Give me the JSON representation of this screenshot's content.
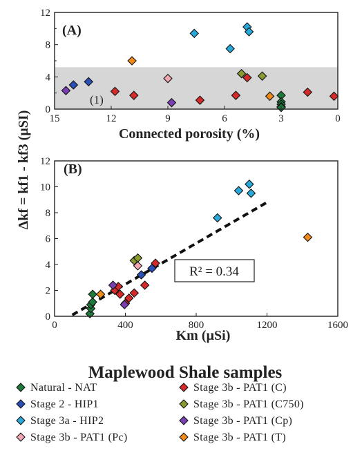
{
  "chart_data": [
    {
      "panel": "(A)",
      "type": "scatter",
      "xlabel": "Connected porosity (%)",
      "xlim": [
        15,
        0
      ],
      "ylim": [
        0,
        12
      ],
      "xticks": [
        "15",
        "12",
        "9",
        "6",
        "3",
        "0"
      ],
      "yticks": [
        "0",
        "4",
        "8",
        "12"
      ],
      "x_reversed": true,
      "grid": false,
      "shaded_band": {
        "ymin": 0,
        "ymax": 5.2,
        "label": "(1)"
      },
      "series": [
        {
          "name": "Natural - NAT",
          "color": "#1e7a3c",
          "points": [
            [
              3.0,
              1.7
            ],
            [
              3.0,
              0.9
            ],
            [
              3.0,
              0.6
            ],
            [
              3.0,
              0.3
            ],
            [
              3.0,
              0.2
            ]
          ]
        },
        {
          "name": "Stage 2 - HIP1",
          "color": "#2a4fb5",
          "points": [
            [
              14.0,
              3.0
            ],
            [
              13.2,
              3.4
            ]
          ]
        },
        {
          "name": "Stage 3a - HIP2",
          "color": "#29a9d9",
          "points": [
            [
              7.6,
              9.4
            ],
            [
              5.7,
              7.5
            ],
            [
              4.8,
              10.2
            ],
            [
              4.7,
              9.6
            ]
          ]
        },
        {
          "name": "Stage 3b - PAT1 (Pc)",
          "color": "#f2a7b3",
          "points": [
            [
              9.0,
              3.8
            ]
          ]
        },
        {
          "name": "Stage 3b - PAT1 (C)",
          "color": "#d42a2a",
          "points": [
            [
              11.8,
              2.2
            ],
            [
              10.8,
              1.7
            ],
            [
              7.3,
              1.1
            ],
            [
              5.4,
              1.7
            ],
            [
              4.8,
              3.9
            ],
            [
              1.6,
              2.1
            ],
            [
              0.2,
              1.6
            ]
          ]
        },
        {
          "name": "Stage 3b - PAT1 (C750)",
          "color": "#8a9a2e",
          "points": [
            [
              5.1,
              4.4
            ],
            [
              4.0,
              4.1
            ]
          ]
        },
        {
          "name": "Stage 3b - PAT1 (Cp)",
          "color": "#7a3fb0",
          "points": [
            [
              14.4,
              2.3
            ],
            [
              8.8,
              0.8
            ]
          ]
        },
        {
          "name": "Stage 3b - PAT1 (T)",
          "color": "#f08a1a",
          "points": [
            [
              10.9,
              6.0
            ],
            [
              3.6,
              1.6
            ]
          ]
        }
      ]
    },
    {
      "panel": "(B)",
      "type": "scatter",
      "xlabel": "Km (µSi)",
      "ylabel": "Δkf = kf1 - kf3 (µSI)",
      "xlim": [
        0,
        1600
      ],
      "ylim": [
        0,
        12
      ],
      "xticks": [
        "0",
        "400",
        "800",
        "1200",
        "1600"
      ],
      "yticks": [
        "0",
        "2",
        "4",
        "6",
        "8",
        "10",
        "12"
      ],
      "grid": false,
      "trendline": {
        "x": [
          100,
          1200
        ],
        "y": [
          0.1,
          8.8
        ],
        "style": "dashed",
        "label": "R² = 0.34"
      },
      "series": [
        {
          "name": "Natural - NAT",
          "color": "#1e7a3c",
          "points": [
            [
              200,
              0.2
            ],
            [
              205,
              0.6
            ],
            [
              205,
              0.9
            ],
            [
              215,
              1.1
            ],
            [
              215,
              1.7
            ]
          ]
        },
        {
          "name": "Stage 2 - HIP1",
          "color": "#2a4fb5",
          "points": [
            [
              490,
              3.2
            ],
            [
              550,
              3.7
            ]
          ]
        },
        {
          "name": "Stage 3a - HIP2",
          "color": "#29a9d9",
          "points": [
            [
              920,
              7.6
            ],
            [
              1040,
              9.7
            ],
            [
              1100,
              10.2
            ],
            [
              1110,
              9.5
            ]
          ]
        },
        {
          "name": "Stage 3b - PAT1 (Pc)",
          "color": "#f2a7b3",
          "points": [
            [
              470,
              3.9
            ]
          ]
        },
        {
          "name": "Stage 3b - PAT1 (C)",
          "color": "#d42a2a",
          "points": [
            [
              340,
              2.0
            ],
            [
              360,
              2.3
            ],
            [
              370,
              1.7
            ],
            [
              400,
              1.0
            ],
            [
              420,
              1.4
            ],
            [
              450,
              1.8
            ],
            [
              510,
              2.4
            ],
            [
              570,
              4.1
            ]
          ]
        },
        {
          "name": "Stage 3b - PAT1 (C750)",
          "color": "#8a9a2e",
          "points": [
            [
              450,
              4.3
            ],
            [
              470,
              4.5
            ]
          ]
        },
        {
          "name": "Stage 3b - PAT1 (Cp)",
          "color": "#7a3fb0",
          "points": [
            [
              330,
              2.4
            ],
            [
              395,
              0.9
            ]
          ]
        },
        {
          "name": "Stage 3b - PAT1 (T)",
          "color": "#f08a1a",
          "points": [
            [
              260,
              1.7
            ],
            [
              1430,
              6.1
            ]
          ]
        }
      ]
    }
  ],
  "legend": {
    "title": "Maplewood Shale samples",
    "items": [
      {
        "label": "Natural - NAT",
        "color": "#1e7a3c"
      },
      {
        "label": "Stage 3b - PAT1 (C)",
        "color": "#d42a2a"
      },
      {
        "label": "Stage 2 - HIP1",
        "color": "#2a4fb5"
      },
      {
        "label": "Stage 3b - PAT1 (C750)",
        "color": "#8a9a2e"
      },
      {
        "label": "Stage 3a - HIP2",
        "color": "#29a9d9"
      },
      {
        "label": "Stage 3b - PAT1 (Cp)",
        "color": "#7a3fb0"
      },
      {
        "label": "Stage 3b - PAT1 (Pc)",
        "color": "#f2a7b3"
      },
      {
        "label": "Stage 3b - PAT1 (T)",
        "color": "#f08a1a"
      }
    ]
  }
}
